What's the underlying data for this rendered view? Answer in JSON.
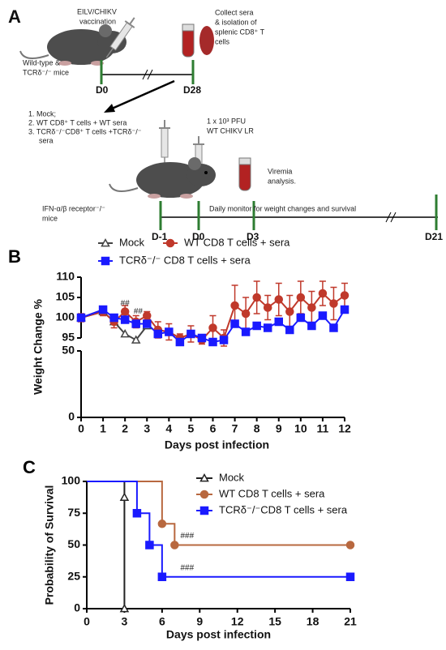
{
  "diagram": {
    "panel_label": "A",
    "vaccination": [
      "EILV/CHIKV",
      "vaccination"
    ],
    "collect": [
      "Collect sera",
      "& isolation of",
      "splenic CD8⁺ T",
      "cells"
    ],
    "mice": [
      "Wild-type &",
      "TCRδ⁻/⁻ mice"
    ],
    "timeline1": [
      "D0",
      "D28"
    ],
    "groups": [
      "1.  Mock;",
      "2.  WT CD8⁺ T cells + WT sera",
      "3.  TCRδ⁻/⁻CD8⁺ T cells +TCRδ⁻/⁻",
      "sera"
    ],
    "challenge": [
      "1 x 10³ PFU",
      "WT CHIKV LR"
    ],
    "viremia": [
      "Viremia",
      "analysis."
    ],
    "recipients": [
      "IFN-α/β receptor⁻/⁻",
      "mice"
    ],
    "monitor": "Daily  monitor for  weight changes and survival",
    "timeline2": [
      "D-1",
      "D0",
      "D3",
      "D21"
    ]
  },
  "chart_data": [
    {
      "type": "line",
      "panel_label": "B",
      "ylabel": "Weight Change %",
      "xlabel": "Days post infection",
      "x": [
        0,
        1,
        1.5,
        2,
        2.5,
        3,
        3.5,
        4,
        4.5,
        5,
        5.5,
        6,
        6.5,
        7,
        7.5,
        8,
        8.5,
        9,
        9.5,
        10,
        10.5,
        11,
        11.5,
        12
      ],
      "xlim": [
        0,
        12
      ],
      "xticks": [
        0,
        1,
        2,
        3,
        4,
        5,
        6,
        7,
        8,
        9,
        10,
        11,
        12
      ],
      "ysegments": [
        {
          "ylim": [
            0,
            50
          ],
          "yticks": [
            0,
            50
          ]
        },
        {
          "ylim": [
            95,
            110
          ],
          "yticks": [
            95,
            100,
            105,
            110
          ]
        }
      ],
      "legend": "top",
      "series": [
        {
          "name": "Mock",
          "color": "#444444",
          "marker": "triangle",
          "values": [
            100,
            101.5,
            99,
            96,
            94.5,
            98,
            null,
            null,
            null,
            null,
            null,
            null,
            null,
            null,
            null,
            null,
            null,
            null,
            null,
            null,
            null,
            null,
            null,
            null
          ]
        },
        {
          "name": "WT CD8 T cells + sera",
          "color": "#c0392b",
          "marker": "circle",
          "values": [
            100,
            101.5,
            99,
            101.5,
            99,
            100.5,
            97,
            96.5,
            95,
            96,
            94.5,
            97.5,
            95,
            103,
            101,
            105,
            102.5,
            104.5,
            101.5,
            105,
            102.5,
            106,
            103.5,
            105.5
          ],
          "errors": [
            1,
            1,
            1.5,
            1.5,
            1.5,
            1,
            2,
            2,
            1,
            2,
            1,
            3,
            2,
            5,
            4,
            4,
            3,
            4,
            4,
            4,
            4,
            3,
            4,
            3
          ]
        },
        {
          "name": "TCRδ⁻/⁻ CD8 T cells + sera",
          "color": "#1a1aff",
          "marker": "square",
          "values": [
            100,
            102,
            100,
            99.5,
            98.5,
            98.5,
            96,
            96.5,
            94,
            96,
            95,
            94,
            94.5,
            98.5,
            96.5,
            98,
            97.5,
            99,
            97,
            100,
            98,
            100.5,
            97.5,
            102
          ]
        }
      ],
      "annotations": [
        {
          "text": "##",
          "x": 2,
          "y": 103.5
        },
        {
          "text": "##",
          "x": 2.6,
          "y": 101.5
        }
      ]
    },
    {
      "type": "step",
      "panel_label": "C",
      "ylabel": "Probability of Survival",
      "xlabel": "Days post infection",
      "xlim": [
        0,
        21
      ],
      "xticks": [
        0,
        3,
        6,
        9,
        12,
        15,
        18,
        21
      ],
      "ylim": [
        0,
        100
      ],
      "yticks": [
        0,
        25,
        50,
        75,
        100
      ],
      "legend": "top-right",
      "series": [
        {
          "name": "Mock",
          "color": "#222222",
          "marker": "triangle",
          "x": [
            0,
            3,
            3
          ],
          "values": [
            100,
            87.5,
            0
          ]
        },
        {
          "name": "WT CD8 T cells + sera",
          "color": "#b8683f",
          "marker": "circle",
          "x": [
            0,
            6,
            7,
            21
          ],
          "values": [
            100,
            66.7,
            50,
            50
          ]
        },
        {
          "name": "TCRδ⁻/⁻CD8 T cells + sera",
          "color": "#1a1aff",
          "marker": "square",
          "x": [
            0,
            4,
            5,
            6,
            21
          ],
          "values": [
            100,
            75,
            50,
            25,
            25
          ]
        }
      ],
      "annotations": [
        {
          "text": "###",
          "x": 8,
          "y": 57
        },
        {
          "text": "###",
          "x": 8,
          "y": 32
        }
      ]
    }
  ]
}
